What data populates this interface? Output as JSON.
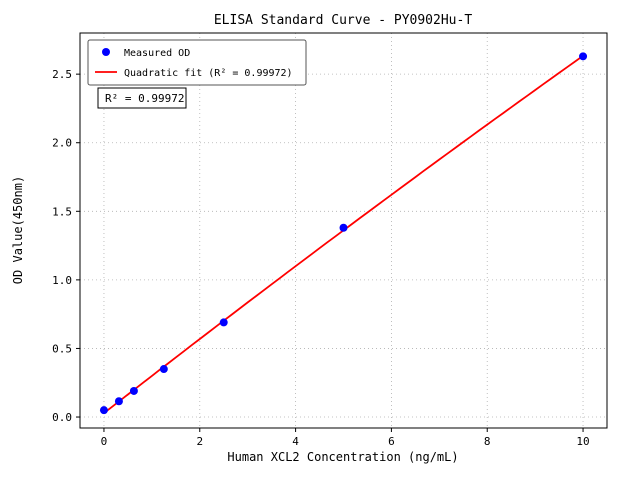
{
  "chart_data": {
    "type": "scatter",
    "title": "ELISA Standard Curve - PY0902Hu-T",
    "xlabel": "Human XCL2 Concentration (ng/mL)",
    "ylabel": "OD Value(450nm)",
    "xlim": [
      -0.5,
      10.5
    ],
    "ylim": [
      -0.08,
      2.8
    ],
    "xticks": [
      0,
      2,
      4,
      6,
      8,
      10
    ],
    "xticklabels": [
      "0",
      "2",
      "4",
      "6",
      "8",
      "10"
    ],
    "yticks": [
      0.0,
      0.5,
      1.0,
      1.5,
      2.0,
      2.5
    ],
    "yticklabels": [
      "0.0",
      "0.5",
      "1.0",
      "1.5",
      "2.0",
      "2.5"
    ],
    "grid": true,
    "grid_style": "dotted",
    "legend": {
      "position": "upper-left",
      "entries": [
        "Measured OD",
        "Quadratic fit (R² = 0.99972)"
      ]
    },
    "annotation": "R² = 0.99972",
    "colors": {
      "points": "#0000ff",
      "fit_line": "#ff0000",
      "grid": "#b0b0b0"
    },
    "series": [
      {
        "name": "Measured OD",
        "type": "scatter",
        "color": "#0000ff",
        "x": [
          0,
          0.3125,
          0.625,
          1.25,
          2.5,
          5,
          10
        ],
        "y": [
          0.05,
          0.115,
          0.19,
          0.35,
          0.69,
          1.38,
          2.63
        ]
      },
      {
        "name": "Quadratic fit",
        "type": "line",
        "color": "#ff0000",
        "fit": "quadratic",
        "r_squared": 0.99972
      }
    ]
  }
}
